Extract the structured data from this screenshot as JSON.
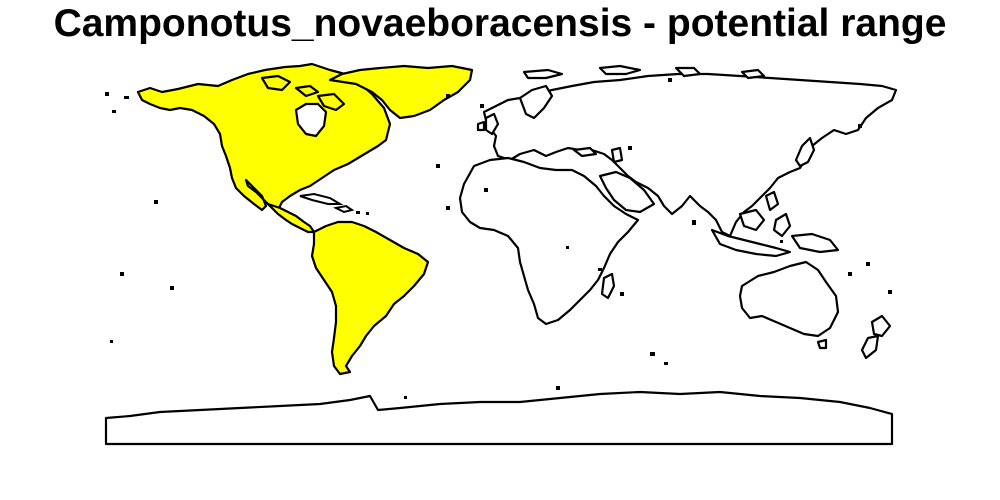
{
  "title": "Camponotus_novaeboracensis - potential range",
  "map": {
    "type": "species-range-map",
    "range_region": "Americas",
    "colors": {
      "range": "#ffff00",
      "land": "#ffffff",
      "outline": "#000000"
    }
  }
}
